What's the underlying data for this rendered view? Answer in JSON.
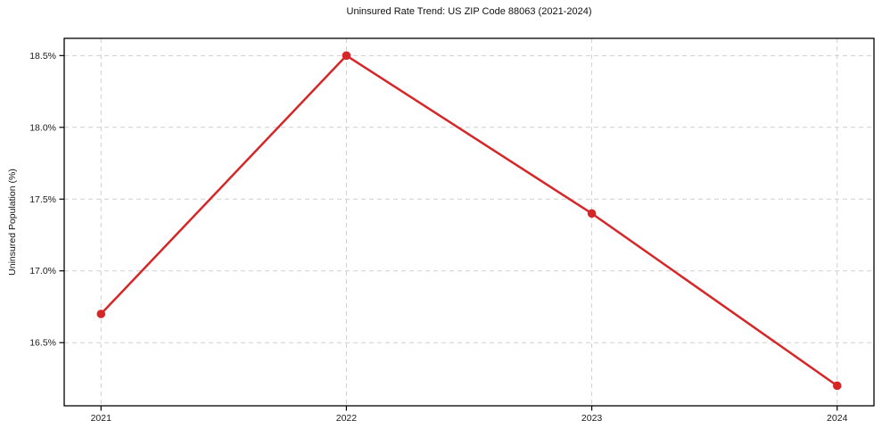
{
  "figure": {
    "title": "Uninsured Rate Trend: US ZIP Code 88063 (2021-2024)"
  },
  "chart_data": {
    "type": "line",
    "title": "Uninsured Rate Trend: US ZIP Code 88063 (2021-2024)",
    "xlabel": "",
    "ylabel": "Uninsured Population (%)",
    "x": [
      2021,
      2022,
      2023,
      2024
    ],
    "x_tick_labels": [
      "2021",
      "2022",
      "2023",
      "2024"
    ],
    "values": [
      16.7,
      18.5,
      17.4,
      16.2
    ],
    "y_ticks": [
      16.5,
      17.0,
      17.5,
      18.0,
      18.5
    ],
    "y_tick_labels": [
      "16.5%",
      "17.0%",
      "17.5%",
      "18.0%",
      "18.5%"
    ],
    "xlim": [
      2020.85,
      2024.15
    ],
    "ylim": [
      16.06,
      18.62
    ],
    "grid": "on",
    "grid_style": "dashed",
    "legend": "none",
    "line_color": "#d62728",
    "grid_color": "#cfcfcf",
    "spine_color": "#000000",
    "marker": "circle"
  }
}
